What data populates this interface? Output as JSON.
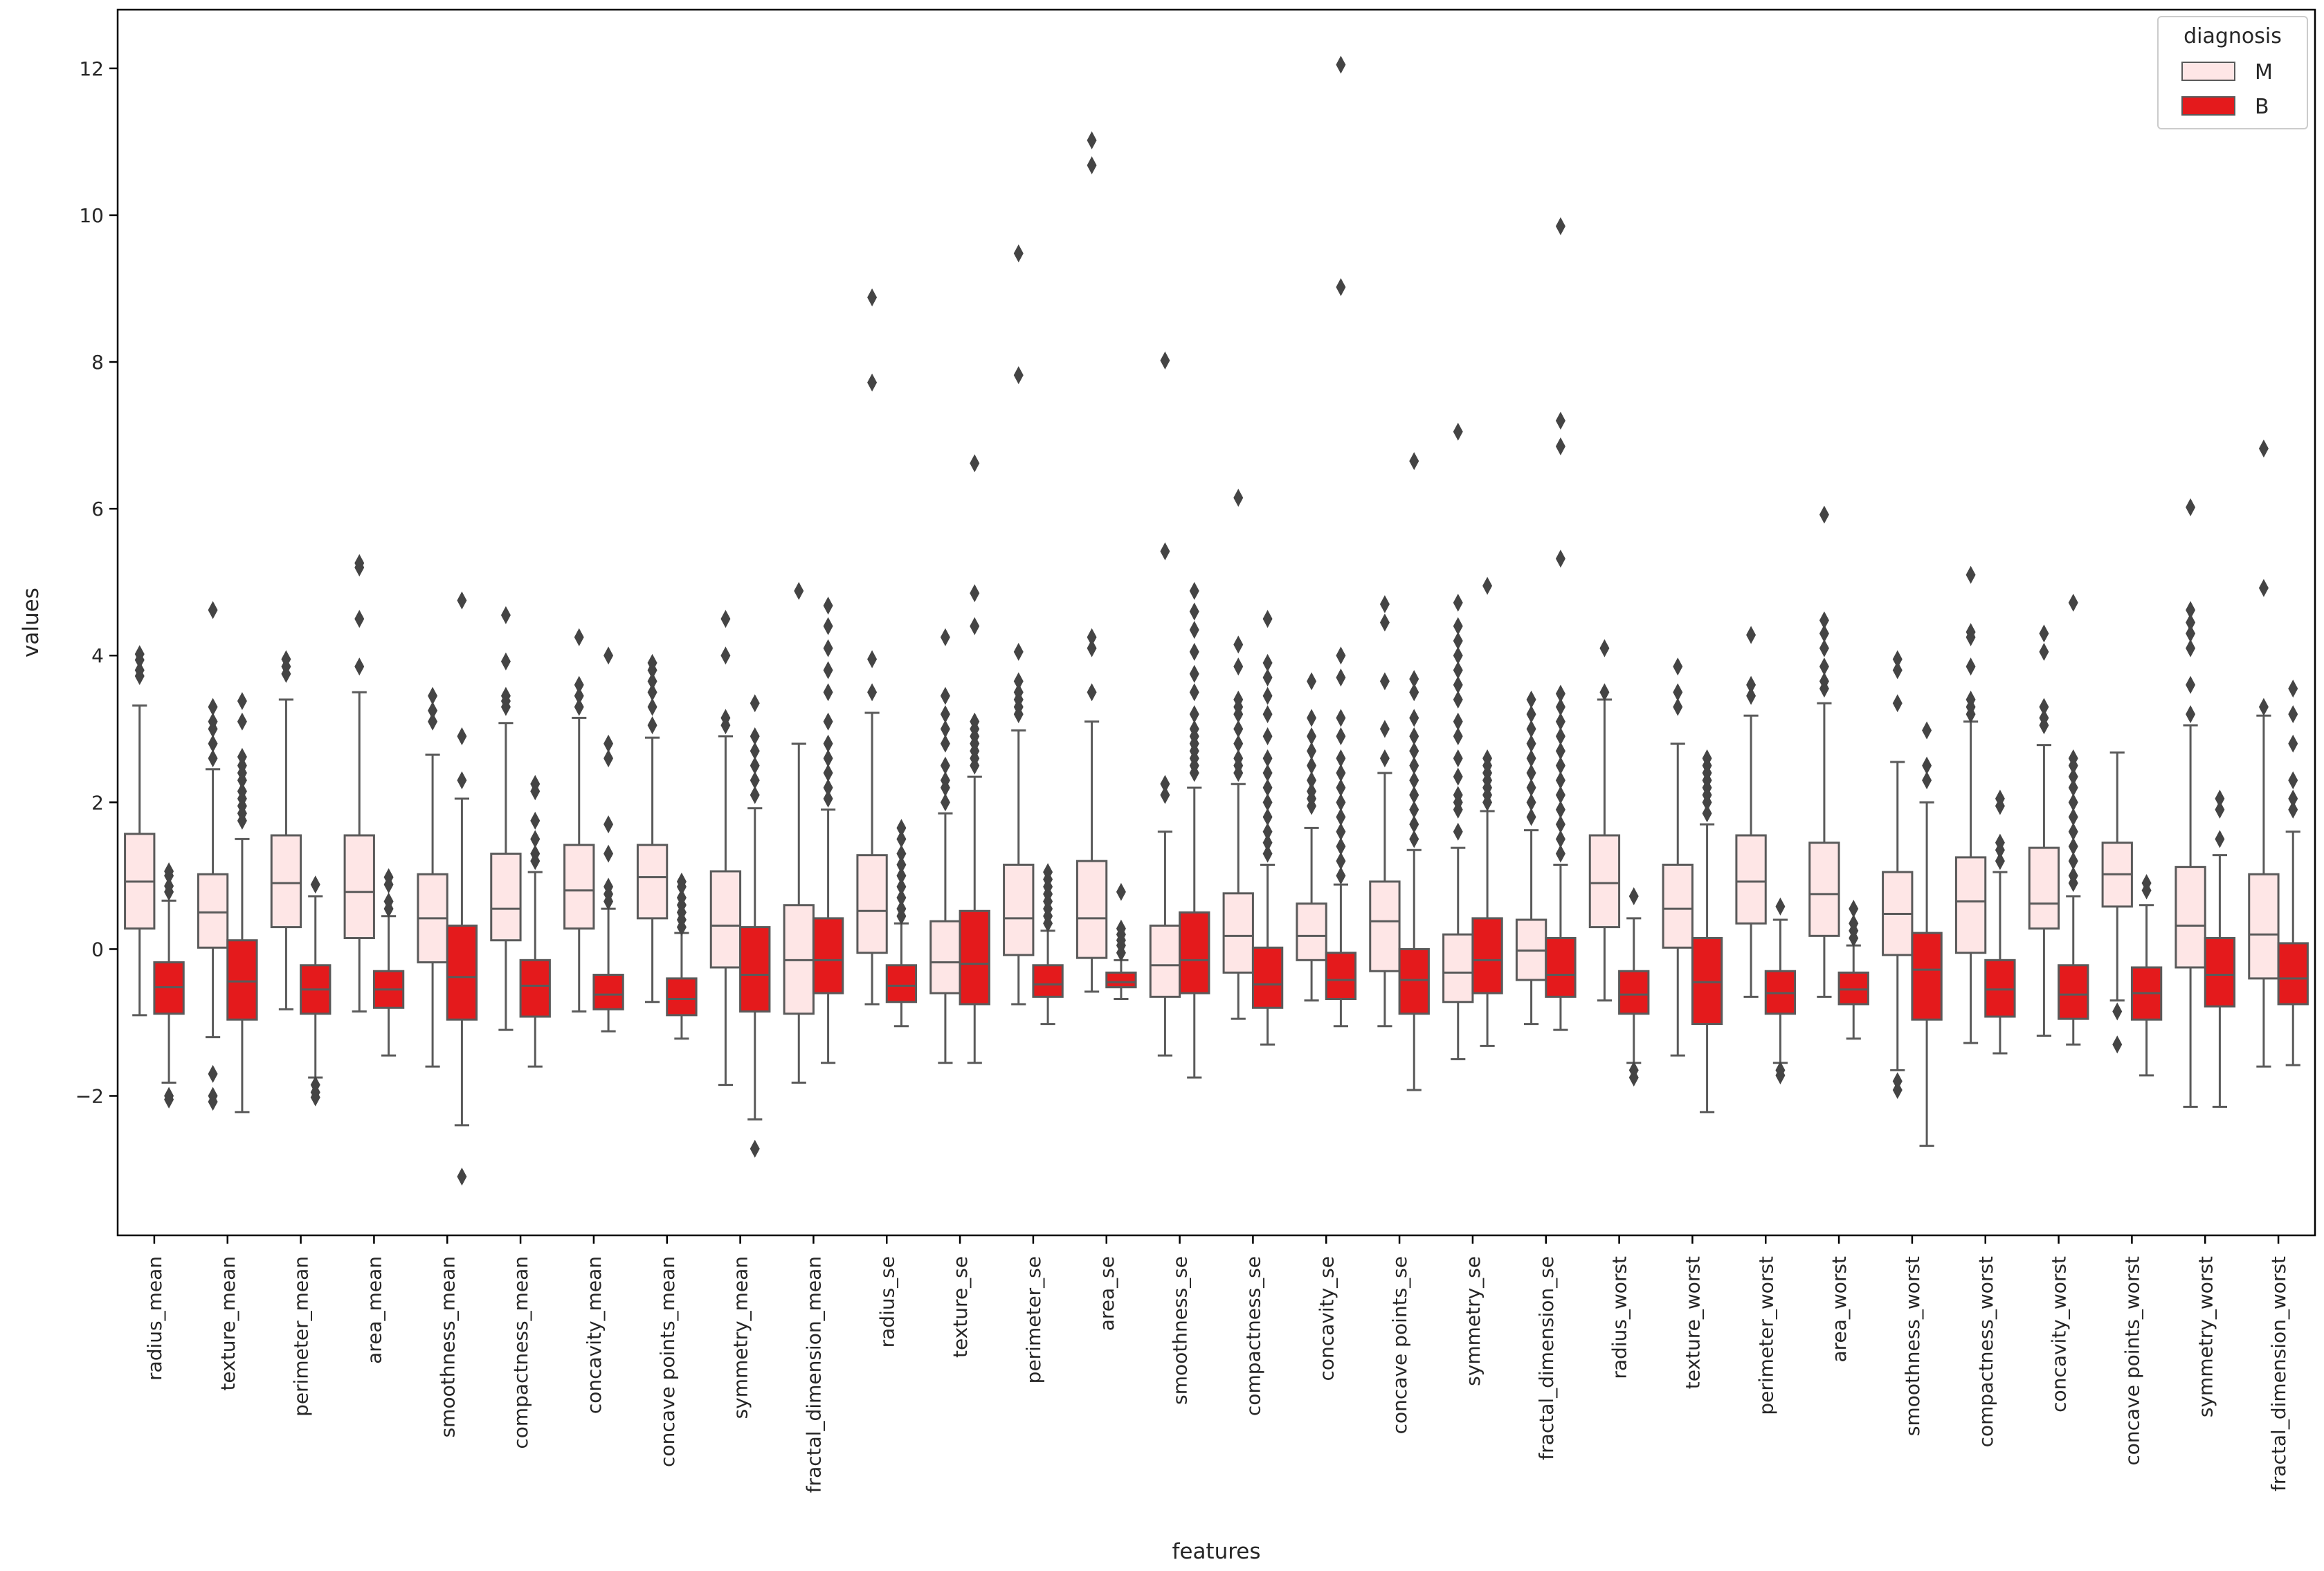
{
  "chart_data": {
    "type": "box",
    "xlabel": "features",
    "ylabel": "values",
    "ylim": [
      -3.9,
      12.8
    ],
    "yticks": [
      -2,
      0,
      2,
      4,
      6,
      8,
      10,
      12
    ],
    "ytick_labels": [
      "−2",
      "0",
      "2",
      "4",
      "6",
      "8",
      "10",
      "12"
    ],
    "legend": {
      "title": "diagnosis",
      "placement": "top-right",
      "entries": [
        {
          "label": "M",
          "color": "#fee6e6"
        },
        {
          "label": "B",
          "color": "#e41a1c"
        }
      ]
    },
    "colors": {
      "M": "#fee6e6",
      "B": "#e41a1c",
      "line": "#5a5a5a",
      "outlier": "#444444"
    },
    "series_order": [
      "M",
      "B"
    ],
    "features": [
      {
        "name": "radius_mean",
        "M": {
          "q1": 0.28,
          "median": 0.92,
          "q3": 1.57,
          "wlo": -0.9,
          "whi": 3.32,
          "outliers": [
            3.72,
            3.8,
            3.94,
            4.02
          ]
        },
        "B": {
          "q1": -0.88,
          "median": -0.52,
          "q3": -0.18,
          "wlo": -1.82,
          "whi": 0.66,
          "outliers": [
            0.78,
            0.86,
            1.0,
            1.06,
            -2.0,
            -2.05
          ]
        }
      },
      {
        "name": "texture_mean",
        "M": {
          "q1": 0.02,
          "median": 0.5,
          "q3": 1.02,
          "wlo": -1.2,
          "whi": 2.45,
          "outliers": [
            2.6,
            2.8,
            3.0,
            3.1,
            3.3,
            4.62,
            -1.7,
            -2.0,
            -2.08
          ]
        },
        "B": {
          "q1": -0.96,
          "median": -0.44,
          "q3": 0.12,
          "wlo": -2.22,
          "whi": 1.5,
          "outliers": [
            1.75,
            1.85,
            1.95,
            2.05,
            2.15,
            2.3,
            2.4,
            2.5,
            2.62,
            3.1,
            3.38
          ]
        }
      },
      {
        "name": "perimeter_mean",
        "M": {
          "q1": 0.3,
          "median": 0.9,
          "q3": 1.55,
          "wlo": -0.82,
          "whi": 3.4,
          "outliers": [
            3.75,
            3.85,
            3.95
          ]
        },
        "B": {
          "q1": -0.88,
          "median": -0.55,
          "q3": -0.22,
          "wlo": -1.75,
          "whi": 0.72,
          "outliers": [
            0.88,
            -1.85,
            -1.95,
            -2.02
          ]
        }
      },
      {
        "name": "area_mean",
        "M": {
          "q1": 0.15,
          "median": 0.78,
          "q3": 1.55,
          "wlo": -0.85,
          "whi": 3.5,
          "outliers": [
            3.85,
            4.5,
            5.2,
            5.26
          ]
        },
        "B": {
          "q1": -0.8,
          "median": -0.55,
          "q3": -0.3,
          "wlo": -1.45,
          "whi": 0.45,
          "outliers": [
            0.55,
            0.65,
            0.88,
            0.98
          ]
        }
      },
      {
        "name": "smoothness_mean",
        "M": {
          "q1": -0.18,
          "median": 0.42,
          "q3": 1.02,
          "wlo": -1.6,
          "whi": 2.65,
          "outliers": [
            3.1,
            3.25,
            3.45
          ]
        },
        "B": {
          "q1": -0.96,
          "median": -0.38,
          "q3": 0.32,
          "wlo": -2.4,
          "whi": 2.05,
          "outliers": [
            2.3,
            2.9,
            4.75,
            -3.1
          ]
        }
      },
      {
        "name": "compactness_mean",
        "M": {
          "q1": 0.12,
          "median": 0.55,
          "q3": 1.3,
          "wlo": -1.1,
          "whi": 3.08,
          "outliers": [
            3.3,
            3.38,
            3.45,
            3.92,
            4.55
          ]
        },
        "B": {
          "q1": -0.92,
          "median": -0.5,
          "q3": -0.15,
          "wlo": -1.6,
          "whi": 1.05,
          "outliers": [
            1.2,
            1.3,
            1.5,
            1.75,
            2.15,
            2.25
          ]
        }
      },
      {
        "name": "concavity_mean",
        "M": {
          "q1": 0.28,
          "median": 0.8,
          "q3": 1.42,
          "wlo": -0.85,
          "whi": 3.15,
          "outliers": [
            3.3,
            3.45,
            3.6,
            4.25
          ]
        },
        "B": {
          "q1": -0.82,
          "median": -0.62,
          "q3": -0.35,
          "wlo": -1.12,
          "whi": 0.55,
          "outliers": [
            0.65,
            0.75,
            0.85,
            1.3,
            1.7,
            2.6,
            2.8,
            4.0
          ]
        }
      },
      {
        "name": "concave points_mean",
        "M": {
          "q1": 0.42,
          "median": 0.98,
          "q3": 1.42,
          "wlo": -0.72,
          "whi": 2.88,
          "outliers": [
            3.05,
            3.3,
            3.5,
            3.65,
            3.8,
            3.9
          ]
        },
        "B": {
          "q1": -0.9,
          "median": -0.68,
          "q3": -0.4,
          "wlo": -1.22,
          "whi": 0.22,
          "outliers": [
            0.3,
            0.4,
            0.5,
            0.6,
            0.7,
            0.85,
            0.92
          ]
        }
      },
      {
        "name": "symmetry_mean",
        "M": {
          "q1": -0.25,
          "median": 0.32,
          "q3": 1.06,
          "wlo": -1.85,
          "whi": 2.9,
          "outliers": [
            3.05,
            3.15,
            4.0,
            4.5
          ]
        },
        "B": {
          "q1": -0.85,
          "median": -0.35,
          "q3": 0.3,
          "wlo": -2.32,
          "whi": 1.92,
          "outliers": [
            2.1,
            2.3,
            2.5,
            2.7,
            2.9,
            3.35,
            -2.72
          ]
        }
      },
      {
        "name": "fractal_dimension_mean",
        "M": {
          "q1": -0.88,
          "median": -0.15,
          "q3": 0.6,
          "wlo": -1.82,
          "whi": 2.8,
          "outliers": [
            4.88
          ]
        },
        "B": {
          "q1": -0.6,
          "median": -0.15,
          "q3": 0.42,
          "wlo": -1.55,
          "whi": 1.9,
          "outliers": [
            2.05,
            2.2,
            2.4,
            2.6,
            2.8,
            3.1,
            3.5,
            3.8,
            4.1,
            4.4,
            4.68
          ]
        }
      },
      {
        "name": "radius_se",
        "M": {
          "q1": -0.05,
          "median": 0.52,
          "q3": 1.28,
          "wlo": -0.75,
          "whi": 3.22,
          "outliers": [
            3.5,
            3.95,
            7.72,
            8.88
          ]
        },
        "B": {
          "q1": -0.72,
          "median": -0.5,
          "q3": -0.22,
          "wlo": -1.05,
          "whi": 0.35,
          "outliers": [
            0.45,
            0.55,
            0.7,
            0.85,
            1.0,
            1.15,
            1.3,
            1.5,
            1.65
          ]
        }
      },
      {
        "name": "texture_se",
        "M": {
          "q1": -0.6,
          "median": -0.18,
          "q3": 0.38,
          "wlo": -1.55,
          "whi": 1.85,
          "outliers": [
            2.0,
            2.2,
            2.3,
            2.5,
            2.8,
            3.0,
            3.2,
            3.45,
            4.25
          ]
        },
        "B": {
          "q1": -0.75,
          "median": -0.2,
          "q3": 0.52,
          "wlo": -1.55,
          "whi": 2.35,
          "outliers": [
            2.5,
            2.6,
            2.7,
            2.8,
            2.9,
            3.0,
            3.1,
            4.4,
            4.85,
            6.62
          ]
        }
      },
      {
        "name": "perimeter_se",
        "M": {
          "q1": -0.08,
          "median": 0.42,
          "q3": 1.15,
          "wlo": -0.75,
          "whi": 2.98,
          "outliers": [
            3.2,
            3.3,
            3.4,
            3.5,
            3.65,
            4.05,
            7.82,
            9.48
          ]
        },
        "B": {
          "q1": -0.65,
          "median": -0.48,
          "q3": -0.22,
          "wlo": -1.02,
          "whi": 0.25,
          "outliers": [
            0.35,
            0.45,
            0.55,
            0.65,
            0.75,
            0.85,
            0.95,
            1.05
          ]
        }
      },
      {
        "name": "area_se",
        "M": {
          "q1": -0.12,
          "median": 0.42,
          "q3": 1.2,
          "wlo": -0.58,
          "whi": 3.1,
          "outliers": [
            3.5,
            4.1,
            4.25,
            10.68,
            11.02
          ]
        },
        "B": {
          "q1": -0.52,
          "median": -0.45,
          "q3": -0.32,
          "wlo": -0.68,
          "whi": -0.15,
          "outliers": [
            -0.05,
            0.05,
            0.12,
            0.2,
            0.28,
            0.78
          ]
        }
      },
      {
        "name": "smoothness_se",
        "M": {
          "q1": -0.65,
          "median": -0.22,
          "q3": 0.32,
          "wlo": -1.45,
          "whi": 1.6,
          "outliers": [
            2.1,
            2.25,
            5.42,
            8.02
          ]
        },
        "B": {
          "q1": -0.6,
          "median": -0.15,
          "q3": 0.5,
          "wlo": -1.75,
          "whi": 2.2,
          "outliers": [
            2.4,
            2.5,
            2.6,
            2.7,
            2.8,
            2.9,
            3.0,
            3.2,
            3.5,
            3.75,
            4.05,
            4.35,
            4.6,
            4.88
          ]
        }
      },
      {
        "name": "compactness_se",
        "M": {
          "q1": -0.32,
          "median": 0.18,
          "q3": 0.76,
          "wlo": -0.95,
          "whi": 2.25,
          "outliers": [
            2.4,
            2.5,
            2.6,
            2.8,
            3.0,
            3.2,
            3.3,
            3.4,
            3.85,
            4.15,
            6.15
          ]
        },
        "B": {
          "q1": -0.8,
          "median": -0.48,
          "q3": 0.02,
          "wlo": -1.3,
          "whi": 1.15,
          "outliers": [
            1.3,
            1.45,
            1.6,
            1.8,
            2.0,
            2.2,
            2.4,
            2.6,
            2.9,
            3.2,
            3.45,
            3.7,
            3.9,
            4.5
          ]
        }
      },
      {
        "name": "concavity_se",
        "M": {
          "q1": -0.15,
          "median": 0.18,
          "q3": 0.62,
          "wlo": -0.7,
          "whi": 1.65,
          "outliers": [
            1.95,
            2.05,
            2.15,
            2.3,
            2.5,
            2.7,
            2.9,
            3.15,
            3.65
          ]
        },
        "B": {
          "q1": -0.68,
          "median": -0.42,
          "q3": -0.05,
          "wlo": -1.05,
          "whi": 0.88,
          "outliers": [
            1.0,
            1.2,
            1.4,
            1.6,
            1.8,
            2.0,
            2.2,
            2.4,
            2.6,
            2.9,
            3.15,
            3.7,
            4.0,
            9.02,
            12.05
          ]
        }
      },
      {
        "name": "concave points_se",
        "M": {
          "q1": -0.3,
          "median": 0.38,
          "q3": 0.92,
          "wlo": -1.05,
          "whi": 2.4,
          "outliers": [
            2.6,
            3.0,
            3.65,
            4.45,
            4.7
          ]
        },
        "B": {
          "q1": -0.88,
          "median": -0.42,
          "q3": 0.0,
          "wlo": -1.92,
          "whi": 1.35,
          "outliers": [
            1.5,
            1.7,
            1.9,
            2.1,
            2.3,
            2.5,
            2.7,
            2.9,
            3.15,
            3.5,
            3.68,
            6.65
          ]
        }
      },
      {
        "name": "symmetry_se",
        "M": {
          "q1": -0.72,
          "median": -0.32,
          "q3": 0.2,
          "wlo": -1.5,
          "whi": 1.38,
          "outliers": [
            1.6,
            1.9,
            2.0,
            2.1,
            2.35,
            2.6,
            2.9,
            3.1,
            3.4,
            3.6,
            3.8,
            4.0,
            4.2,
            4.4,
            4.72,
            7.05
          ]
        },
        "B": {
          "q1": -0.6,
          "median": -0.15,
          "q3": 0.42,
          "wlo": -1.32,
          "whi": 1.88,
          "outliers": [
            2.0,
            2.1,
            2.2,
            2.3,
            2.4,
            2.5,
            2.6,
            4.95
          ]
        }
      },
      {
        "name": "fractal_dimension_se",
        "M": {
          "q1": -0.42,
          "median": -0.02,
          "q3": 0.4,
          "wlo": -1.02,
          "whi": 1.62,
          "outliers": [
            1.8,
            2.0,
            2.2,
            2.4,
            2.6,
            2.8,
            3.0,
            3.2,
            3.4
          ]
        },
        "B": {
          "q1": -0.65,
          "median": -0.35,
          "q3": 0.15,
          "wlo": -1.1,
          "whi": 1.15,
          "outliers": [
            1.3,
            1.5,
            1.7,
            1.9,
            2.1,
            2.3,
            2.5,
            2.7,
            2.9,
            3.1,
            3.3,
            3.48,
            5.32,
            6.85,
            7.2,
            9.85
          ]
        }
      },
      {
        "name": "radius_worst",
        "M": {
          "q1": 0.3,
          "median": 0.9,
          "q3": 1.55,
          "wlo": -0.7,
          "whi": 3.4,
          "outliers": [
            3.5,
            4.1
          ]
        },
        "B": {
          "q1": -0.88,
          "median": -0.62,
          "q3": -0.3,
          "wlo": -1.55,
          "whi": 0.42,
          "outliers": [
            0.72,
            -1.65,
            -1.75
          ]
        }
      },
      {
        "name": "texture_worst",
        "M": {
          "q1": 0.02,
          "median": 0.55,
          "q3": 1.15,
          "wlo": -1.45,
          "whi": 2.8,
          "outliers": [
            3.3,
            3.5,
            3.85
          ]
        },
        "B": {
          "q1": -1.02,
          "median": -0.45,
          "q3": 0.15,
          "wlo": -2.22,
          "whi": 1.7,
          "outliers": [
            1.85,
            2.0,
            2.1,
            2.2,
            2.3,
            2.4,
            2.5,
            2.6
          ]
        }
      },
      {
        "name": "perimeter_worst",
        "M": {
          "q1": 0.35,
          "median": 0.92,
          "q3": 1.55,
          "wlo": -0.65,
          "whi": 3.18,
          "outliers": [
            3.45,
            3.6,
            4.28
          ]
        },
        "B": {
          "q1": -0.88,
          "median": -0.6,
          "q3": -0.3,
          "wlo": -1.55,
          "whi": 0.4,
          "outliers": [
            0.58,
            -1.65,
            -1.72
          ]
        }
      },
      {
        "name": "area_worst",
        "M": {
          "q1": 0.18,
          "median": 0.75,
          "q3": 1.45,
          "wlo": -0.65,
          "whi": 3.35,
          "outliers": [
            3.55,
            3.65,
            3.85,
            4.1,
            4.3,
            4.48,
            5.92
          ]
        },
        "B": {
          "q1": -0.75,
          "median": -0.55,
          "q3": -0.32,
          "wlo": -1.22,
          "whi": 0.05,
          "outliers": [
            0.15,
            0.25,
            0.35,
            0.55
          ]
        }
      },
      {
        "name": "smoothness_worst",
        "M": {
          "q1": -0.08,
          "median": 0.48,
          "q3": 1.05,
          "wlo": -1.65,
          "whi": 2.55,
          "outliers": [
            3.35,
            3.8,
            3.95,
            -1.8,
            -1.92
          ]
        },
        "B": {
          "q1": -0.96,
          "median": -0.28,
          "q3": 0.22,
          "wlo": -2.68,
          "whi": 2.0,
          "outliers": [
            2.3,
            2.5,
            2.98
          ]
        }
      },
      {
        "name": "compactness_worst",
        "M": {
          "q1": -0.05,
          "median": 0.65,
          "q3": 1.25,
          "wlo": -1.28,
          "whi": 3.1,
          "outliers": [
            3.2,
            3.3,
            3.4,
            3.85,
            4.25,
            4.32,
            5.1
          ]
        },
        "B": {
          "q1": -0.92,
          "median": -0.55,
          "q3": -0.15,
          "wlo": -1.42,
          "whi": 1.05,
          "outliers": [
            1.2,
            1.35,
            1.45,
            1.95,
            2.05
          ]
        }
      },
      {
        "name": "concavity_worst",
        "M": {
          "q1": 0.28,
          "median": 0.62,
          "q3": 1.38,
          "wlo": -1.18,
          "whi": 2.78,
          "outliers": [
            3.05,
            3.15,
            3.3,
            4.05,
            4.3
          ]
        },
        "B": {
          "q1": -0.95,
          "median": -0.62,
          "q3": -0.22,
          "wlo": -1.3,
          "whi": 0.72,
          "outliers": [
            0.9,
            1.0,
            1.2,
            1.4,
            1.6,
            1.8,
            2.0,
            2.2,
            2.35,
            2.5,
            2.6,
            4.72
          ]
        }
      },
      {
        "name": "concave points_worst",
        "M": {
          "q1": 0.58,
          "median": 1.02,
          "q3": 1.45,
          "wlo": -0.7,
          "whi": 2.68,
          "outliers": [
            -0.85,
            -1.3
          ]
        },
        "B": {
          "q1": -0.96,
          "median": -0.6,
          "q3": -0.25,
          "wlo": -1.72,
          "whi": 0.6,
          "outliers": [
            0.8,
            0.9
          ]
        }
      },
      {
        "name": "symmetry_worst",
        "M": {
          "q1": -0.25,
          "median": 0.32,
          "q3": 1.12,
          "wlo": -2.15,
          "whi": 3.05,
          "outliers": [
            3.2,
            3.6,
            4.1,
            4.3,
            4.45,
            4.62,
            6.02
          ]
        },
        "B": {
          "q1": -0.78,
          "median": -0.35,
          "q3": 0.15,
          "wlo": -2.15,
          "whi": 1.28,
          "outliers": [
            1.5,
            1.9,
            2.05
          ]
        }
      },
      {
        "name": "fractal_dimension_worst",
        "M": {
          "q1": -0.4,
          "median": 0.2,
          "q3": 1.02,
          "wlo": -1.6,
          "whi": 3.18,
          "outliers": [
            3.3,
            4.92,
            6.82
          ]
        },
        "B": {
          "q1": -0.75,
          "median": -0.4,
          "q3": 0.08,
          "wlo": -1.58,
          "whi": 1.6,
          "outliers": [
            1.9,
            2.05,
            2.3,
            2.8,
            3.2,
            3.55
          ]
        }
      }
    ]
  }
}
